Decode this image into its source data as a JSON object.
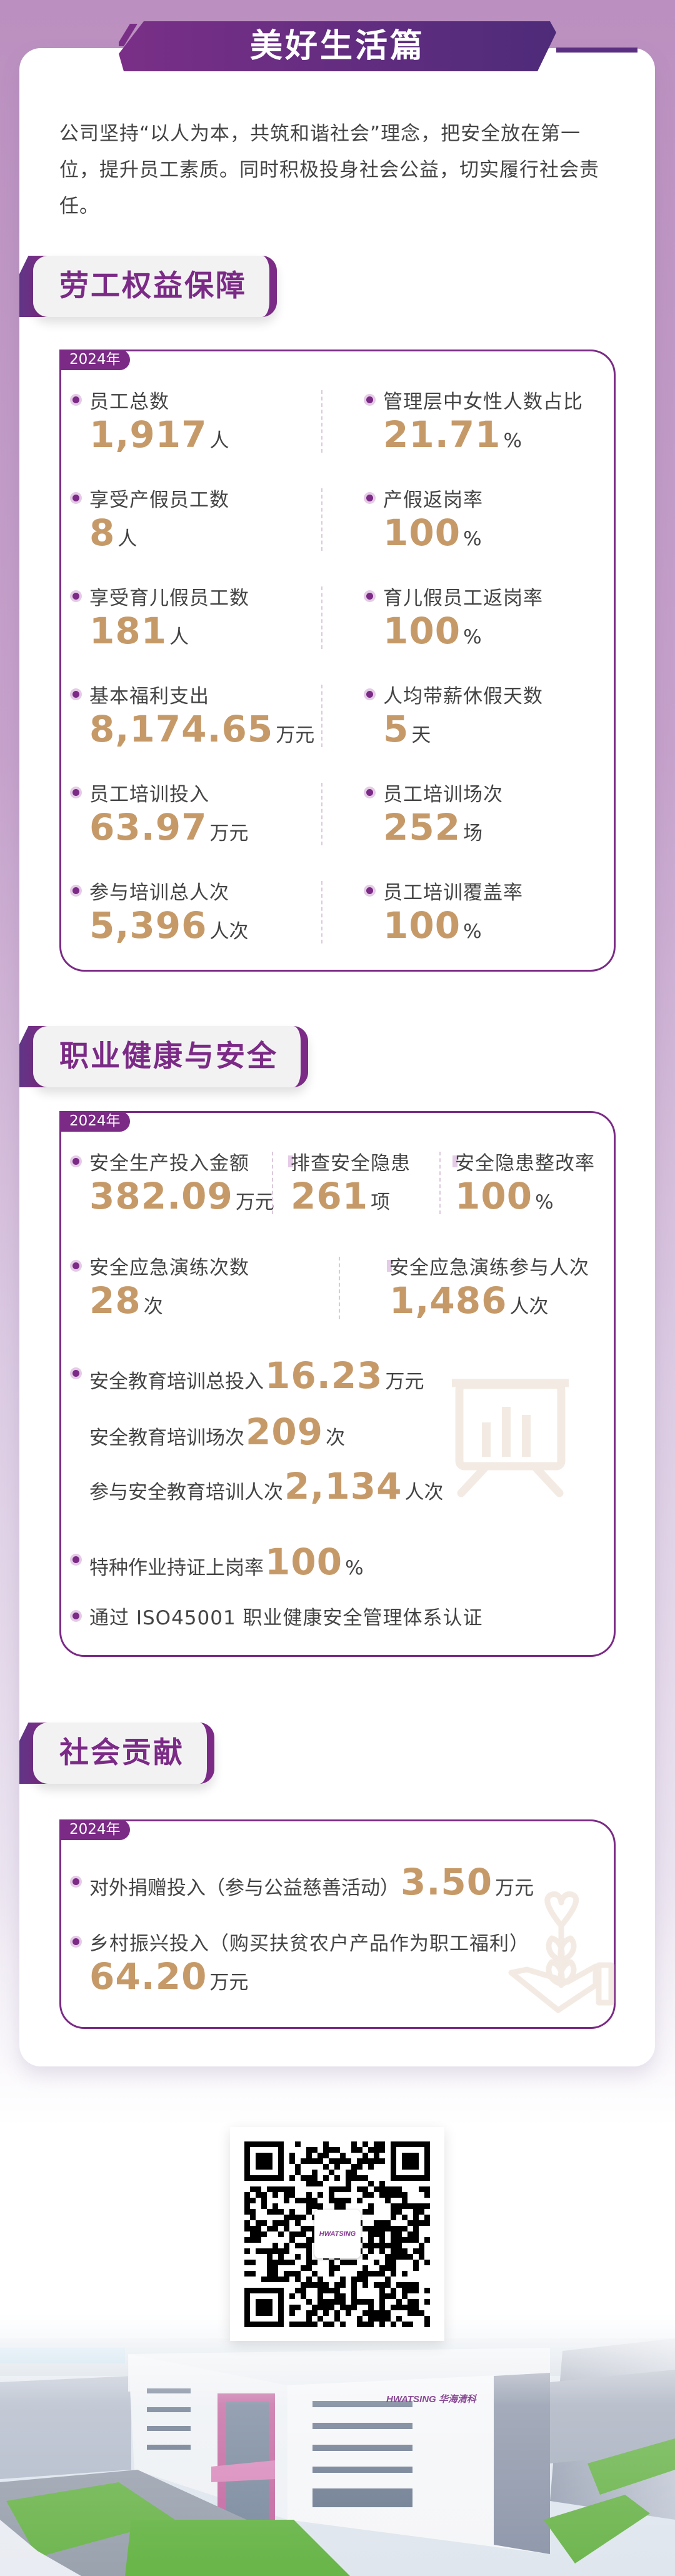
{
  "page": {
    "title": "美好生活篇",
    "intro": "公司坚持“以人为本，共筑和谐社会”理念，把安全放在第一位，提升员工素质。同时积极投身社会公益，切实履行社会责任。"
  },
  "colors": {
    "accent": "#7b2a86",
    "value": "#c69a68",
    "text": "#444444"
  },
  "labor": {
    "title": "劳工权益保障",
    "year": "2024年",
    "items": [
      {
        "label": "员工总数",
        "value": "1,917",
        "unit": "人"
      },
      {
        "label": "管理层中女性人数占比",
        "value": "21.71",
        "unit": "%"
      },
      {
        "label": "享受产假员工数",
        "value": "8",
        "unit": "人"
      },
      {
        "label": "产假返岗率",
        "value": "100",
        "unit": "%"
      },
      {
        "label": "享受育儿假员工数",
        "value": "181",
        "unit": "人"
      },
      {
        "label": "育儿假员工返岗率",
        "value": "100",
        "unit": "%"
      },
      {
        "label": "基本福利支出",
        "value": "8,174.65",
        "unit": "万元"
      },
      {
        "label": "人均带薪休假天数",
        "value": "5",
        "unit": "天"
      },
      {
        "label": "员工培训投入",
        "value": "63.97",
        "unit": "万元"
      },
      {
        "label": "员工培训场次",
        "value": "252",
        "unit": "场"
      },
      {
        "label": "参与培训总人次",
        "value": "5,396",
        "unit": "人次"
      },
      {
        "label": "员工培训覆盖率",
        "value": "100",
        "unit": "%"
      }
    ]
  },
  "safety": {
    "title": "职业健康与安全",
    "year": "2024年",
    "row1": [
      {
        "label": "安全生产投入金额",
        "value": "382.09",
        "unit": "万元"
      },
      {
        "label": "排查安全隐患",
        "value": "261",
        "unit": "项"
      },
      {
        "label": "安全隐患整改率",
        "value": "100",
        "unit": "%"
      }
    ],
    "row2": [
      {
        "label": "安全应急演练次数",
        "value": "28",
        "unit": "次"
      },
      {
        "label": "安全应急演练参与人次",
        "value": "1,486",
        "unit": "人次"
      }
    ],
    "inline": [
      {
        "label": "安全教育培训总投入",
        "value": "16.23",
        "unit": "万元",
        "bullet": true
      },
      {
        "label": "安全教育培训场次",
        "value": "209",
        "unit": "次",
        "bullet": false
      },
      {
        "label": "参与安全教育培训人次",
        "value": "2,134",
        "unit": "人次",
        "bullet": false
      },
      {
        "label": "特种作业持证上岗率",
        "value": "100",
        "unit": "%",
        "bullet": true
      }
    ],
    "certification": "通过 ISO45001 职业健康安全管理体系认证",
    "icon": "presentation-board-icon"
  },
  "social": {
    "title": "社会贡献",
    "year": "2024年",
    "items": [
      {
        "label": "对外捐赠投入（参与公益慈善活动）",
        "value": "3.50",
        "unit": "万元"
      },
      {
        "label": "乡村振兴投入（购买扶贫农户产品作为职工福利）",
        "value": "64.20",
        "unit": "万元"
      }
    ],
    "icon": "hand-plant-heart-icon"
  },
  "footer": {
    "qr_logo": "HWATSING",
    "building_logo": "HWATSING 华海清科"
  }
}
